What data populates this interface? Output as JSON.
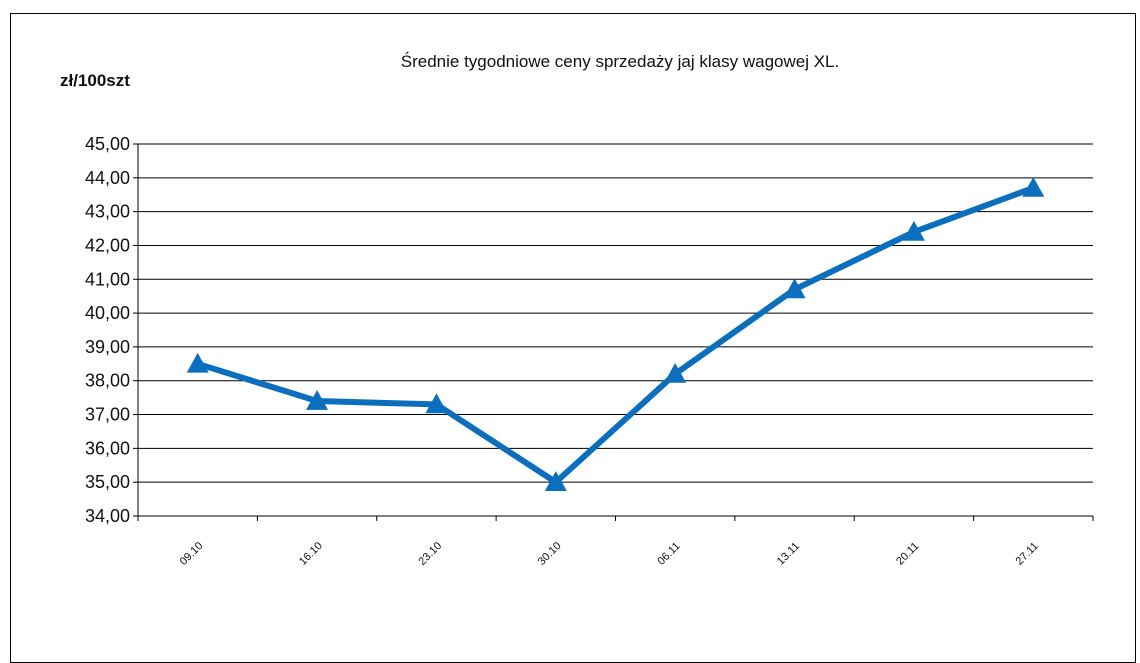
{
  "chart_data": {
    "type": "line",
    "title": "Średnie tygodniowe ceny sprzedaży jaj klasy wagowej XL.",
    "ylabel": "zł/100szt",
    "xlabel": "",
    "categories": [
      "09.10",
      "16.10",
      "23.10",
      "30.10",
      "06.11",
      "13.11",
      "20.11",
      "27.11"
    ],
    "series": [
      {
        "values": [
          38.5,
          37.4,
          37.3,
          35.0,
          38.2,
          40.7,
          42.4,
          43.7
        ]
      }
    ],
    "ylim": [
      34,
      45
    ],
    "yticks": [
      "34,00",
      "35,00",
      "36,00",
      "37,00",
      "38,00",
      "39,00",
      "40,00",
      "41,00",
      "42,00",
      "43,00",
      "44,00",
      "45,00"
    ],
    "grid": true,
    "legend": "none",
    "line_color": "#0b6fbe",
    "marker": "triangle"
  }
}
